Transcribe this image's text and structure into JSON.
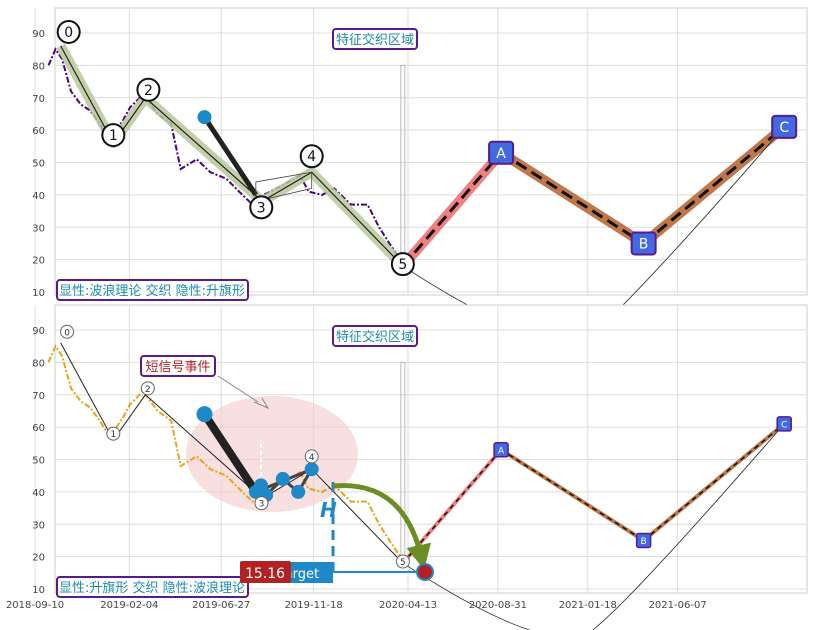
{
  "chart_data": [
    {
      "type": "line",
      "panel": "top",
      "ylim": [
        8,
        98
      ],
      "yticks": [
        10,
        20,
        30,
        40,
        50,
        60,
        70,
        80,
        90
      ],
      "grid": true,
      "region_label": "特征交织区域",
      "caption": "显性:波浪理论 交织 隐性:升旗形",
      "price_series": [
        {
          "x": "2018-10-01",
          "y": 80
        },
        {
          "x": "2018-10-12",
          "y": 85
        },
        {
          "x": "2018-10-22",
          "y": 82
        },
        {
          "x": "2018-11-05",
          "y": 72
        },
        {
          "x": "2018-11-20",
          "y": 68
        },
        {
          "x": "2018-12-05",
          "y": 66
        },
        {
          "x": "2018-12-20",
          "y": 62
        },
        {
          "x": "2019-01-01",
          "y": 58
        },
        {
          "x": "2019-01-15",
          "y": 60
        },
        {
          "x": "2019-01-25",
          "y": 63
        },
        {
          "x": "2019-02-05",
          "y": 67
        },
        {
          "x": "2019-02-25",
          "y": 71
        },
        {
          "x": "2019-03-20",
          "y": 65
        },
        {
          "x": "2019-04-10",
          "y": 62
        },
        {
          "x": "2019-04-25",
          "y": 48
        },
        {
          "x": "2019-05-20",
          "y": 51
        },
        {
          "x": "2019-06-10",
          "y": 47
        },
        {
          "x": "2019-07-05",
          "y": 45
        },
        {
          "x": "2019-07-30",
          "y": 40
        },
        {
          "x": "2019-08-15",
          "y": 37
        },
        {
          "x": "2019-09-01",
          "y": 40
        },
        {
          "x": "2019-10-01",
          "y": 43
        },
        {
          "x": "2019-10-28",
          "y": 46
        },
        {
          "x": "2019-11-10",
          "y": 41
        },
        {
          "x": "2019-12-01",
          "y": 40
        },
        {
          "x": "2019-12-20",
          "y": 42
        },
        {
          "x": "2020-01-15",
          "y": 37
        },
        {
          "x": "2020-02-10",
          "y": 37
        },
        {
          "x": "2020-02-28",
          "y": 30
        },
        {
          "x": "2020-03-15",
          "y": 25
        },
        {
          "x": "2020-04-01",
          "y": 20
        }
      ],
      "wave_points": [
        {
          "label": "0",
          "x": "2018-10-20",
          "y": 86
        },
        {
          "label": "1",
          "x": "2019-01-10",
          "y": 56
        },
        {
          "label": "2",
          "x": "2019-03-01",
          "y": 70
        },
        {
          "label": "3",
          "x": "2019-08-30",
          "y": 38
        },
        {
          "label": "4",
          "x": "2019-11-15",
          "y": 47
        },
        {
          "label": "5",
          "x": "2020-04-05",
          "y": 18
        }
      ],
      "projection_points": [
        {
          "label": "A",
          "x": "2020-09-05",
          "y": 53
        },
        {
          "label": "B",
          "x": "2021-04-15",
          "y": 25
        },
        {
          "label": "C",
          "x": "2021-11-20",
          "y": 61
        }
      ]
    },
    {
      "type": "line",
      "panel": "bottom",
      "ylim": [
        8,
        98
      ],
      "yticks": [
        10,
        20,
        30,
        40,
        50,
        60,
        70,
        80,
        90
      ],
      "xticks": [
        "2018-09-10",
        "2019-02-04",
        "2019-06-27",
        "2019-11-18",
        "2020-04-13",
        "2020-08-31",
        "2021-01-18",
        "2021-06-07"
      ],
      "grid": true,
      "region_label": "特征交织区域",
      "event_label": "短信号事件",
      "caption": "显性:升旗形 交织 隐性:波浪理论",
      "target_value": "15.16",
      "target_label": "Target",
      "height_marker": "H",
      "flag_points": [
        {
          "x": "2019-06-01",
          "y": 64
        },
        {
          "x": "2019-08-20",
          "y": 40
        },
        {
          "x": "2019-08-28",
          "y": 42
        },
        {
          "x": "2019-09-05",
          "y": 39
        },
        {
          "x": "2019-10-01",
          "y": 44
        },
        {
          "x": "2019-10-25",
          "y": 40
        },
        {
          "x": "2019-11-15",
          "y": 47
        }
      ]
    }
  ],
  "colors": {
    "price_top": "#4b0082",
    "price_bottom": "#e8a317",
    "wave_band": "#b8c79a",
    "projection_red": "#f08080",
    "projection_brown": "#c0784a",
    "label_blue": "#4169e1",
    "frame_purple": "#5b1a8c",
    "text_teal": "#1a8ab0",
    "flag_blue": "#1e88c8",
    "ellipse": "#f4cccc",
    "arrow_green": "#6b8e23",
    "target_red": "#b22222"
  }
}
